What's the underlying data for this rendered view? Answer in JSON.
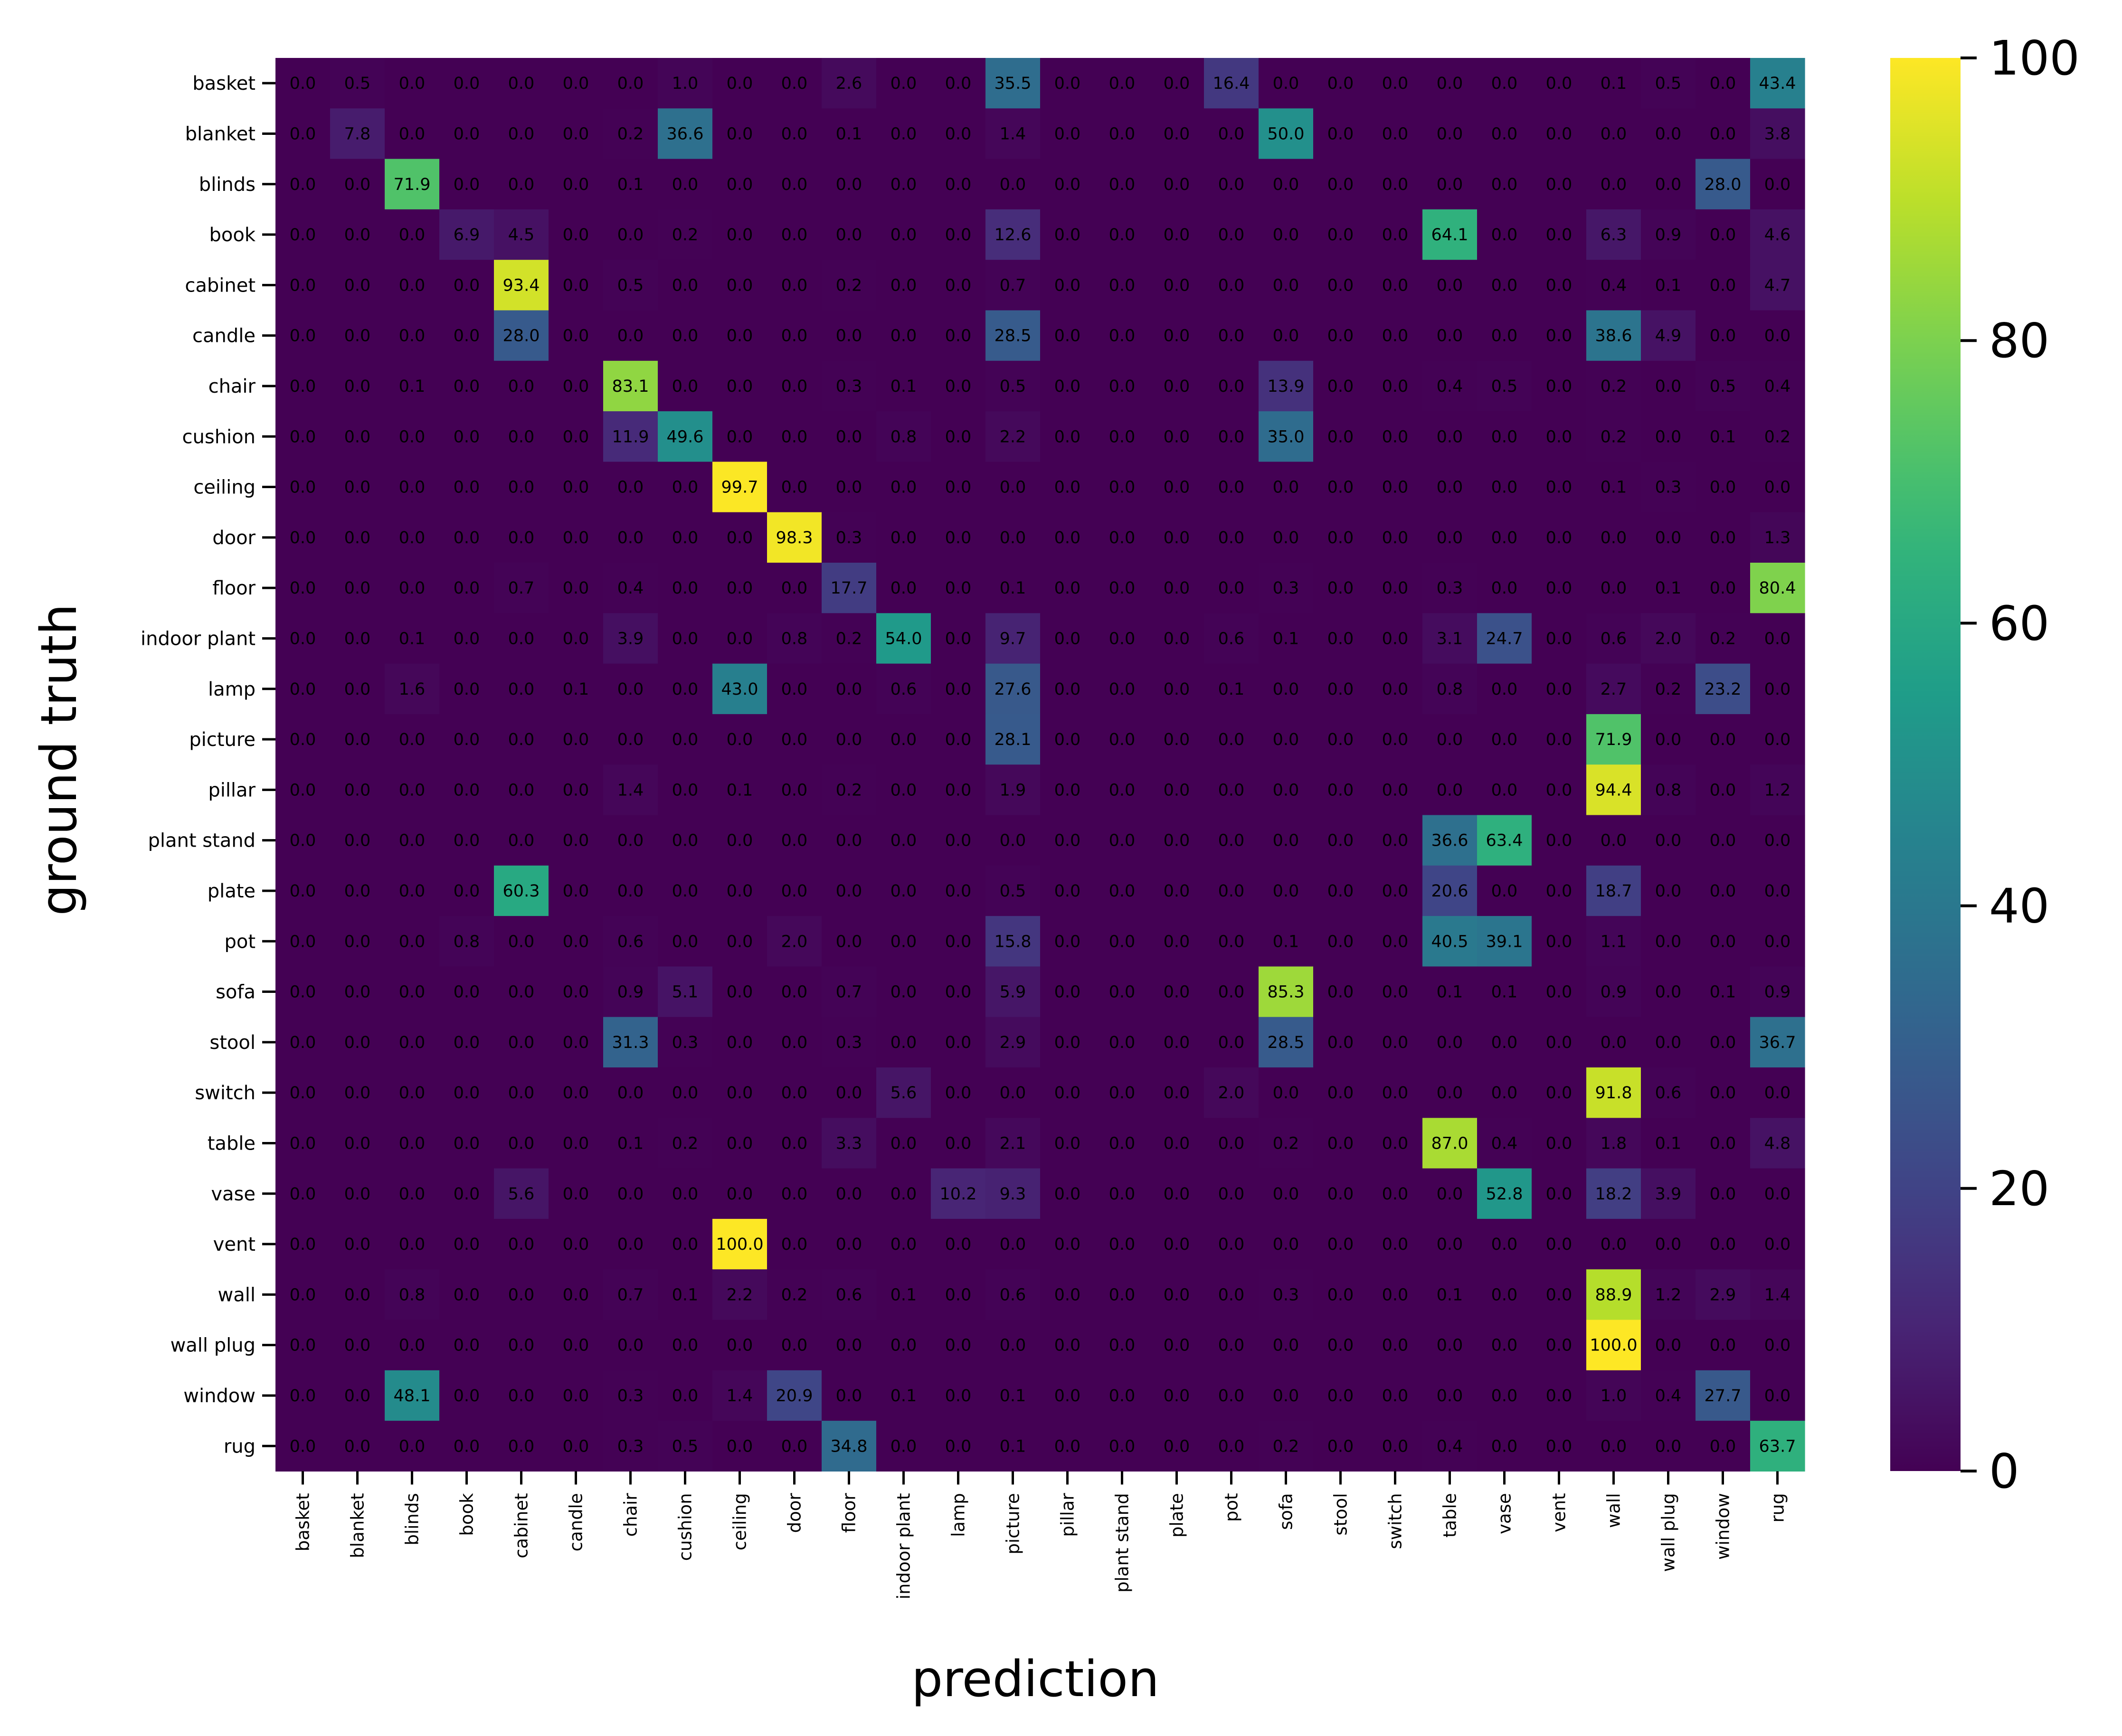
{
  "chart_data": {
    "type": "heatmap",
    "xlabel": "prediction",
    "ylabel": "ground truth",
    "x_categories": [
      "basket",
      "blanket",
      "blinds",
      "book",
      "cabinet",
      "candle",
      "chair",
      "cushion",
      "ceiling",
      "door",
      "floor",
      "indoor plant",
      "lamp",
      "picture",
      "pillar",
      "plant stand",
      "plate",
      "pot",
      "sofa",
      "stool",
      "switch",
      "table",
      "vase",
      "vent",
      "wall",
      "wall plug",
      "window",
      "rug"
    ],
    "y_categories": [
      "basket",
      "blanket",
      "blinds",
      "book",
      "cabinet",
      "candle",
      "chair",
      "cushion",
      "ceiling",
      "door",
      "floor",
      "indoor plant",
      "lamp",
      "picture",
      "pillar",
      "plant stand",
      "plate",
      "pot",
      "sofa",
      "stool",
      "switch",
      "table",
      "vase",
      "vent",
      "wall",
      "wall plug",
      "window",
      "rug"
    ],
    "values": [
      [
        0.0,
        0.5,
        0.0,
        0.0,
        0.0,
        0.0,
        0.0,
        1.0,
        0.0,
        0.0,
        2.6,
        0.0,
        0.0,
        35.5,
        0.0,
        0.0,
        0.0,
        16.4,
        0.0,
        0.0,
        0.0,
        0.0,
        0.0,
        0.0,
        0.1,
        0.5,
        0.0,
        43.4
      ],
      [
        0.0,
        7.8,
        0.0,
        0.0,
        0.0,
        0.0,
        0.2,
        36.6,
        0.0,
        0.0,
        0.1,
        0.0,
        0.0,
        1.4,
        0.0,
        0.0,
        0.0,
        0.0,
        50.0,
        0.0,
        0.0,
        0.0,
        0.0,
        0.0,
        0.0,
        0.0,
        0.0,
        3.8
      ],
      [
        0.0,
        0.0,
        71.9,
        0.0,
        0.0,
        0.0,
        0.1,
        0.0,
        0.0,
        0.0,
        0.0,
        0.0,
        0.0,
        0.0,
        0.0,
        0.0,
        0.0,
        0.0,
        0.0,
        0.0,
        0.0,
        0.0,
        0.0,
        0.0,
        0.0,
        0.0,
        28.0,
        0.0
      ],
      [
        0.0,
        0.0,
        0.0,
        6.9,
        4.5,
        0.0,
        0.0,
        0.2,
        0.0,
        0.0,
        0.0,
        0.0,
        0.0,
        12.6,
        0.0,
        0.0,
        0.0,
        0.0,
        0.0,
        0.0,
        0.0,
        64.1,
        0.0,
        0.0,
        6.3,
        0.9,
        0.0,
        4.6
      ],
      [
        0.0,
        0.0,
        0.0,
        0.0,
        93.4,
        0.0,
        0.5,
        0.0,
        0.0,
        0.0,
        0.2,
        0.0,
        0.0,
        0.7,
        0.0,
        0.0,
        0.0,
        0.0,
        0.0,
        0.0,
        0.0,
        0.0,
        0.0,
        0.0,
        0.4,
        0.1,
        0.0,
        4.7
      ],
      [
        0.0,
        0.0,
        0.0,
        0.0,
        28.0,
        0.0,
        0.0,
        0.0,
        0.0,
        0.0,
        0.0,
        0.0,
        0.0,
        28.5,
        0.0,
        0.0,
        0.0,
        0.0,
        0.0,
        0.0,
        0.0,
        0.0,
        0.0,
        0.0,
        38.6,
        4.9,
        0.0,
        0.0
      ],
      [
        0.0,
        0.0,
        0.1,
        0.0,
        0.0,
        0.0,
        83.1,
        0.0,
        0.0,
        0.0,
        0.3,
        0.1,
        0.0,
        0.5,
        0.0,
        0.0,
        0.0,
        0.0,
        13.9,
        0.0,
        0.0,
        0.4,
        0.5,
        0.0,
        0.2,
        0.0,
        0.5,
        0.4
      ],
      [
        0.0,
        0.0,
        0.0,
        0.0,
        0.0,
        0.0,
        11.9,
        49.6,
        0.0,
        0.0,
        0.0,
        0.8,
        0.0,
        2.2,
        0.0,
        0.0,
        0.0,
        0.0,
        35.0,
        0.0,
        0.0,
        0.0,
        0.0,
        0.0,
        0.2,
        0.0,
        0.1,
        0.2
      ],
      [
        0.0,
        0.0,
        0.0,
        0.0,
        0.0,
        0.0,
        0.0,
        0.0,
        99.7,
        0.0,
        0.0,
        0.0,
        0.0,
        0.0,
        0.0,
        0.0,
        0.0,
        0.0,
        0.0,
        0.0,
        0.0,
        0.0,
        0.0,
        0.0,
        0.1,
        0.3,
        0.0,
        0.0
      ],
      [
        0.0,
        0.0,
        0.0,
        0.0,
        0.0,
        0.0,
        0.0,
        0.0,
        0.0,
        98.3,
        0.3,
        0.0,
        0.0,
        0.0,
        0.0,
        0.0,
        0.0,
        0.0,
        0.0,
        0.0,
        0.0,
        0.0,
        0.0,
        0.0,
        0.0,
        0.0,
        0.0,
        1.3
      ],
      [
        0.0,
        0.0,
        0.0,
        0.0,
        0.7,
        0.0,
        0.4,
        0.0,
        0.0,
        0.0,
        17.7,
        0.0,
        0.0,
        0.1,
        0.0,
        0.0,
        0.0,
        0.0,
        0.3,
        0.0,
        0.0,
        0.3,
        0.0,
        0.0,
        0.0,
        0.1,
        0.0,
        80.4
      ],
      [
        0.0,
        0.0,
        0.1,
        0.0,
        0.0,
        0.0,
        3.9,
        0.0,
        0.0,
        0.8,
        0.2,
        54.0,
        0.0,
        9.7,
        0.0,
        0.0,
        0.0,
        0.6,
        0.1,
        0.0,
        0.0,
        3.1,
        24.7,
        0.0,
        0.6,
        2.0,
        0.2,
        0.0
      ],
      [
        0.0,
        0.0,
        1.6,
        0.0,
        0.0,
        0.1,
        0.0,
        0.0,
        43.0,
        0.0,
        0.0,
        0.6,
        0.0,
        27.6,
        0.0,
        0.0,
        0.0,
        0.1,
        0.0,
        0.0,
        0.0,
        0.8,
        0.0,
        0.0,
        2.7,
        0.2,
        23.2,
        0.0
      ],
      [
        0.0,
        0.0,
        0.0,
        0.0,
        0.0,
        0.0,
        0.0,
        0.0,
        0.0,
        0.0,
        0.0,
        0.0,
        0.0,
        28.1,
        0.0,
        0.0,
        0.0,
        0.0,
        0.0,
        0.0,
        0.0,
        0.0,
        0.0,
        0.0,
        71.9,
        0.0,
        0.0,
        0.0
      ],
      [
        0.0,
        0.0,
        0.0,
        0.0,
        0.0,
        0.0,
        1.4,
        0.0,
        0.1,
        0.0,
        0.2,
        0.0,
        0.0,
        1.9,
        0.0,
        0.0,
        0.0,
        0.0,
        0.0,
        0.0,
        0.0,
        0.0,
        0.0,
        0.0,
        94.4,
        0.8,
        0.0,
        1.2
      ],
      [
        0.0,
        0.0,
        0.0,
        0.0,
        0.0,
        0.0,
        0.0,
        0.0,
        0.0,
        0.0,
        0.0,
        0.0,
        0.0,
        0.0,
        0.0,
        0.0,
        0.0,
        0.0,
        0.0,
        0.0,
        0.0,
        36.6,
        63.4,
        0.0,
        0.0,
        0.0,
        0.0,
        0.0
      ],
      [
        0.0,
        0.0,
        0.0,
        0.0,
        60.3,
        0.0,
        0.0,
        0.0,
        0.0,
        0.0,
        0.0,
        0.0,
        0.0,
        0.5,
        0.0,
        0.0,
        0.0,
        0.0,
        0.0,
        0.0,
        0.0,
        20.6,
        0.0,
        0.0,
        18.7,
        0.0,
        0.0,
        0.0
      ],
      [
        0.0,
        0.0,
        0.0,
        0.8,
        0.0,
        0.0,
        0.6,
        0.0,
        0.0,
        2.0,
        0.0,
        0.0,
        0.0,
        15.8,
        0.0,
        0.0,
        0.0,
        0.0,
        0.1,
        0.0,
        0.0,
        40.5,
        39.1,
        0.0,
        1.1,
        0.0,
        0.0,
        0.0
      ],
      [
        0.0,
        0.0,
        0.0,
        0.0,
        0.0,
        0.0,
        0.9,
        5.1,
        0.0,
        0.0,
        0.7,
        0.0,
        0.0,
        5.9,
        0.0,
        0.0,
        0.0,
        0.0,
        85.3,
        0.0,
        0.0,
        0.1,
        0.1,
        0.0,
        0.9,
        0.0,
        0.1,
        0.9
      ],
      [
        0.0,
        0.0,
        0.0,
        0.0,
        0.0,
        0.0,
        31.3,
        0.3,
        0.0,
        0.0,
        0.3,
        0.0,
        0.0,
        2.9,
        0.0,
        0.0,
        0.0,
        0.0,
        28.5,
        0.0,
        0.0,
        0.0,
        0.0,
        0.0,
        0.0,
        0.0,
        0.0,
        36.7
      ],
      [
        0.0,
        0.0,
        0.0,
        0.0,
        0.0,
        0.0,
        0.0,
        0.0,
        0.0,
        0.0,
        0.0,
        5.6,
        0.0,
        0.0,
        0.0,
        0.0,
        0.0,
        2.0,
        0.0,
        0.0,
        0.0,
        0.0,
        0.0,
        0.0,
        91.8,
        0.6,
        0.0,
        0.0
      ],
      [
        0.0,
        0.0,
        0.0,
        0.0,
        0.0,
        0.0,
        0.1,
        0.2,
        0.0,
        0.0,
        3.3,
        0.0,
        0.0,
        2.1,
        0.0,
        0.0,
        0.0,
        0.0,
        0.2,
        0.0,
        0.0,
        87.0,
        0.4,
        0.0,
        1.8,
        0.1,
        0.0,
        4.8
      ],
      [
        0.0,
        0.0,
        0.0,
        0.0,
        5.6,
        0.0,
        0.0,
        0.0,
        0.0,
        0.0,
        0.0,
        0.0,
        10.2,
        9.3,
        0.0,
        0.0,
        0.0,
        0.0,
        0.0,
        0.0,
        0.0,
        0.0,
        52.8,
        0.0,
        18.2,
        3.9,
        0.0,
        0.0
      ],
      [
        0.0,
        0.0,
        0.0,
        0.0,
        0.0,
        0.0,
        0.0,
        0.0,
        100.0,
        0.0,
        0.0,
        0.0,
        0.0,
        0.0,
        0.0,
        0.0,
        0.0,
        0.0,
        0.0,
        0.0,
        0.0,
        0.0,
        0.0,
        0.0,
        0.0,
        0.0,
        0.0,
        0.0
      ],
      [
        0.0,
        0.0,
        0.8,
        0.0,
        0.0,
        0.0,
        0.7,
        0.1,
        2.2,
        0.2,
        0.6,
        0.1,
        0.0,
        0.6,
        0.0,
        0.0,
        0.0,
        0.0,
        0.3,
        0.0,
        0.0,
        0.1,
        0.0,
        0.0,
        88.9,
        1.2,
        2.9,
        1.4
      ],
      [
        0.0,
        0.0,
        0.0,
        0.0,
        0.0,
        0.0,
        0.0,
        0.0,
        0.0,
        0.0,
        0.0,
        0.0,
        0.0,
        0.0,
        0.0,
        0.0,
        0.0,
        0.0,
        0.0,
        0.0,
        0.0,
        0.0,
        0.0,
        0.0,
        100.0,
        0.0,
        0.0,
        0.0
      ],
      [
        0.0,
        0.0,
        48.1,
        0.0,
        0.0,
        0.0,
        0.3,
        0.0,
        1.4,
        20.9,
        0.0,
        0.1,
        0.0,
        0.1,
        0.0,
        0.0,
        0.0,
        0.0,
        0.0,
        0.0,
        0.0,
        0.0,
        0.0,
        0.0,
        1.0,
        0.4,
        27.7,
        0.0
      ],
      [
        0.0,
        0.0,
        0.0,
        0.0,
        0.0,
        0.0,
        0.3,
        0.5,
        0.0,
        0.0,
        34.8,
        0.0,
        0.0,
        0.1,
        0.0,
        0.0,
        0.0,
        0.0,
        0.2,
        0.0,
        0.0,
        0.4,
        0.0,
        0.0,
        0.0,
        0.0,
        0.0,
        63.7
      ]
    ],
    "colorbar": {
      "colormap": "viridis",
      "range": [
        0,
        100
      ],
      "ticks": [
        0,
        20,
        40,
        60,
        80,
        100
      ]
    },
    "grid": false
  }
}
